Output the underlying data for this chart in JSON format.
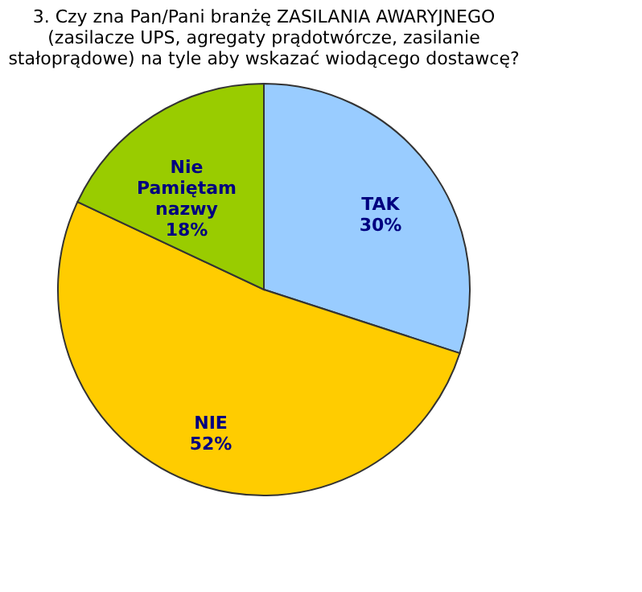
{
  "chart_data": {
    "type": "pie",
    "title": "3. Czy zna Pan/Pani branżę ZASILANIA AWARYJNEGO (zasilacze UPS, agregaty prądotwórcze, zasilanie stałoprądowe) na tyle aby wskazać wiodącego dostawcę?",
    "categories": [
      "TAK",
      "NIE",
      "Nie Pamiętam nazwy"
    ],
    "values": [
      30,
      52,
      18
    ],
    "value_labels": [
      "30%",
      "52%",
      "18%"
    ],
    "colors": [
      "#99ccff",
      "#ffcc00",
      "#99cc00"
    ],
    "legend": false
  }
}
